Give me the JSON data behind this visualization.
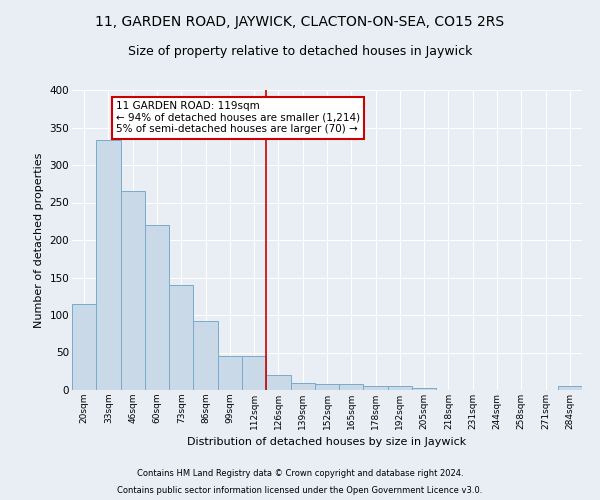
{
  "title": "11, GARDEN ROAD, JAYWICK, CLACTON-ON-SEA, CO15 2RS",
  "subtitle": "Size of property relative to detached houses in Jaywick",
  "xlabel": "Distribution of detached houses by size in Jaywick",
  "ylabel": "Number of detached properties",
  "categories": [
    "20sqm",
    "33sqm",
    "46sqm",
    "60sqm",
    "73sqm",
    "86sqm",
    "99sqm",
    "112sqm",
    "126sqm",
    "139sqm",
    "152sqm",
    "165sqm",
    "178sqm",
    "192sqm",
    "205sqm",
    "218sqm",
    "231sqm",
    "244sqm",
    "258sqm",
    "271sqm",
    "284sqm"
  ],
  "values": [
    115,
    333,
    265,
    220,
    140,
    92,
    46,
    46,
    20,
    10,
    8,
    8,
    6,
    6,
    3,
    0,
    0,
    0,
    0,
    0,
    5
  ],
  "bar_color": "#c9d9e8",
  "bar_edge_color": "#7aabcc",
  "property_line_x": 7.5,
  "annotation_text": "11 GARDEN ROAD: 119sqm\n← 94% of detached houses are smaller (1,214)\n5% of semi-detached houses are larger (70) →",
  "annotation_box_color": "#ffffff",
  "annotation_box_edge_color": "#cc0000",
  "vline_color": "#cc0000",
  "footer1": "Contains HM Land Registry data © Crown copyright and database right 2024.",
  "footer2": "Contains public sector information licensed under the Open Government Licence v3.0.",
  "ylim": [
    0,
    400
  ],
  "yticks": [
    0,
    50,
    100,
    150,
    200,
    250,
    300,
    350,
    400
  ],
  "background_color": "#e8eef4",
  "grid_color": "#ffffff",
  "title_fontsize": 10,
  "subtitle_fontsize": 9,
  "footer_fontsize": 6
}
